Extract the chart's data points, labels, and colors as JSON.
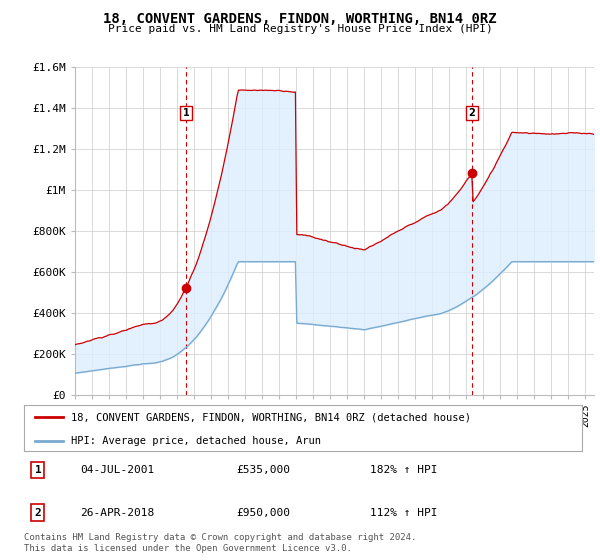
{
  "title": "18, CONVENT GARDENS, FINDON, WORTHING, BN14 0RZ",
  "subtitle": "Price paid vs. HM Land Registry's House Price Index (HPI)",
  "ylim": [
    0,
    1600000
  ],
  "yticks": [
    0,
    200000,
    400000,
    600000,
    800000,
    1000000,
    1200000,
    1400000,
    1600000
  ],
  "ytick_labels": [
    "£0",
    "£200K",
    "£400K",
    "£600K",
    "£800K",
    "£1M",
    "£1.2M",
    "£1.4M",
    "£1.6M"
  ],
  "xlim_start": 1995.0,
  "xlim_end": 2025.5,
  "sale1_year": 2001.54,
  "sale1_price": 535000,
  "sale1_text": "04-JUL-2001",
  "sale1_pct": "182% ↑ HPI",
  "sale2_year": 2018.32,
  "sale2_price": 950000,
  "sale2_text": "26-APR-2018",
  "sale2_pct": "112% ↑ HPI",
  "property_color": "#cc0000",
  "hpi_color": "#7aaad0",
  "fill_color": "#ddeeff",
  "legend_property": "18, CONVENT GARDENS, FINDON, WORTHING, BN14 0RZ (detached house)",
  "legend_hpi": "HPI: Average price, detached house, Arun",
  "footer": "Contains HM Land Registry data © Crown copyright and database right 2024.\nThis data is licensed under the Open Government Licence v3.0.",
  "background_color": "#ffffff",
  "grid_color": "#cccccc"
}
